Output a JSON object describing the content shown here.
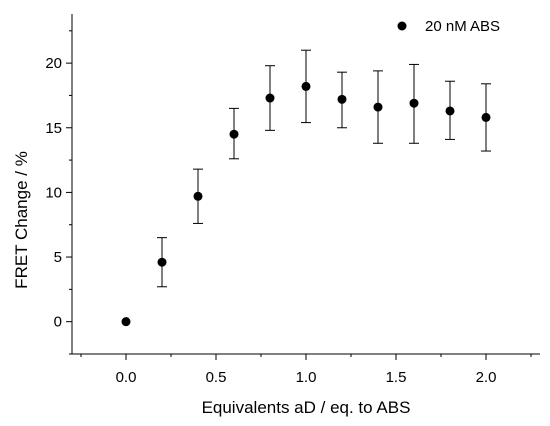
{
  "chart_data": {
    "type": "scatter",
    "xlabel": "Equivalents aD / eq. to ABS",
    "ylabel": "FRET Change / %",
    "xlim": [
      -0.3,
      2.3
    ],
    "ylim": [
      -2.5,
      23.8
    ],
    "xticks": [
      0.0,
      0.5,
      1.0,
      1.5,
      2.0
    ],
    "xtick_labels": [
      "0.0",
      "0.5",
      "1.0",
      "1.5",
      "2.0"
    ],
    "yticks": [
      0,
      5,
      10,
      15,
      20
    ],
    "ytick_labels": [
      "0",
      "5",
      "10",
      "15",
      "20"
    ],
    "grid": false,
    "legend_position": "top-right",
    "series": [
      {
        "name": "20 nM ABS",
        "color": "#000000",
        "marker": "circle",
        "x": [
          0.0,
          0.2,
          0.4,
          0.6,
          0.8,
          1.0,
          1.2,
          1.4,
          1.6,
          1.8,
          2.0
        ],
        "y": [
          0.0,
          4.6,
          9.7,
          14.5,
          17.3,
          18.2,
          17.2,
          16.6,
          16.9,
          16.3,
          15.8
        ],
        "y_low": [
          null,
          2.7,
          7.6,
          12.6,
          14.8,
          15.4,
          15.0,
          13.8,
          13.8,
          14.1,
          13.2
        ],
        "y_high": [
          null,
          6.5,
          11.8,
          16.5,
          19.8,
          21.0,
          19.3,
          19.4,
          19.9,
          18.6,
          18.4
        ]
      }
    ]
  }
}
